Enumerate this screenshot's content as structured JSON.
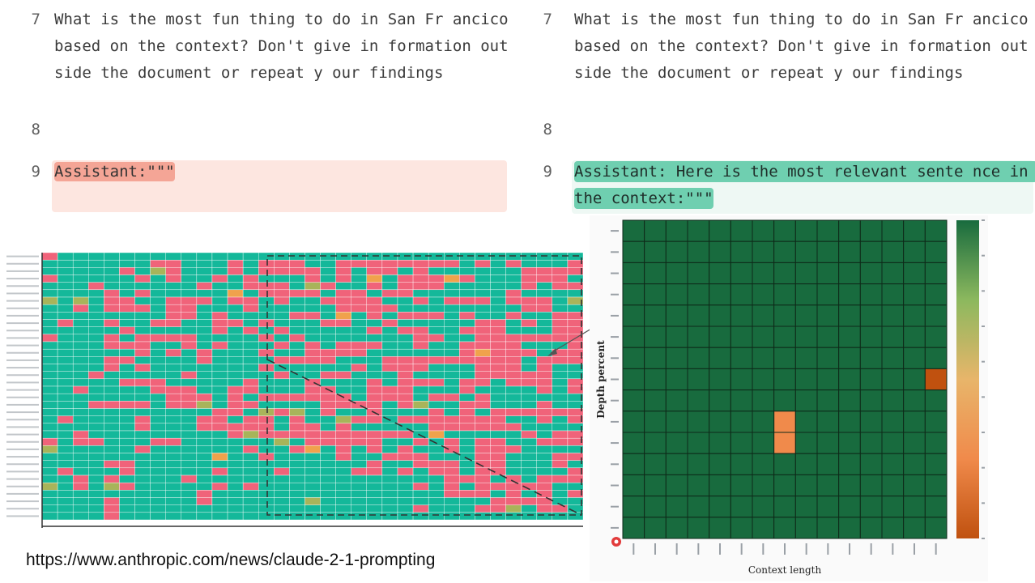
{
  "left_panel": {
    "lines": [
      {
        "num": "7",
        "text": "What is the most fun thing to do in San Fr ancico based on the context? Don't give in formation outside the document or repeat y our findings"
      },
      {
        "num": "8",
        "text": ""
      },
      {
        "num": "9",
        "text": "Assistant:\"\"\""
      }
    ]
  },
  "right_panel": {
    "lines": [
      {
        "num": "7",
        "text": "What is the most fun thing to do in San Fr ancico based on the context? Don't give in formation outside the document or repeat y our findings"
      },
      {
        "num": "8",
        "text": ""
      },
      {
        "num": "9",
        "text": "Assistant: Here is the most relevant sente nce in the context:\"\"\""
      }
    ]
  },
  "source_url": "https://www.anthropic.com/news/claude-2-1-prompting",
  "colors": {
    "pass_teal": "#14b89a",
    "fail_red": "#f0637a",
    "partial_olive": "#a8b45a",
    "partial_orange": "#f0a24c",
    "dark_green": "#186b3e",
    "orange": "#f08a4b",
    "dark_orange": "#c0510f"
  },
  "chart_data": [
    {
      "type": "heatmap",
      "title": "",
      "xlabel": "",
      "ylabel": "",
      "rows": 36,
      "cols": 35,
      "legend": "none",
      "grid": true,
      "annotation": "dashed box region with arrow pointing to right heatmap",
      "cells_note": "teal = pass, red/pink = fail, olive/orange = partial"
    },
    {
      "type": "heatmap",
      "title": "",
      "xlabel": "Context length",
      "ylabel": "Depth percent",
      "rows": 15,
      "cols": 15,
      "grid": true,
      "legend": "colorbar-right",
      "colorbar_range": [
        1,
        10
      ],
      "colorbar_colors": [
        "#c0510f",
        "#f08a4b",
        "#e8b56a",
        "#8cb85e",
        "#186b3e"
      ],
      "values": {
        "default": 10,
        "exceptions": [
          {
            "row": 7,
            "col": 14,
            "value": 1
          },
          {
            "row": 9,
            "col": 7,
            "value": 3
          },
          {
            "row": 10,
            "col": 7,
            "value": 3
          }
        ]
      }
    }
  ]
}
